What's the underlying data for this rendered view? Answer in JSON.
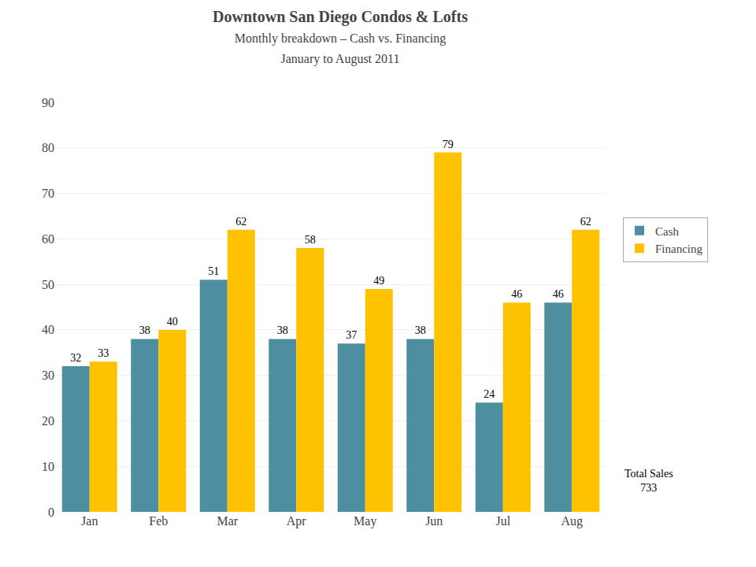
{
  "chart_data": {
    "type": "bar",
    "title": "Downtown San Diego Condos & Lofts",
    "subtitle": [
      "Monthly breakdown – Cash vs. Financing",
      "January to August 2011"
    ],
    "categories": [
      "Jan",
      "Feb",
      "Mar",
      "Apr",
      "May",
      "Jun",
      "Jul",
      "Aug"
    ],
    "series": [
      {
        "name": "Cash",
        "color": "#4d8fa0",
        "values": [
          32,
          38,
          51,
          38,
          37,
          38,
          24,
          46
        ]
      },
      {
        "name": "Financing",
        "color": "#ffc200",
        "values": [
          33,
          40,
          62,
          58,
          49,
          79,
          46,
          62
        ]
      }
    ],
    "ylim": [
      0,
      90
    ],
    "yticks": [
      0,
      10,
      20,
      30,
      40,
      50,
      60,
      70,
      80,
      90
    ],
    "grid": true,
    "legend": "right",
    "data_labels": true,
    "annotations": [
      "Total Sales\n733"
    ]
  }
}
